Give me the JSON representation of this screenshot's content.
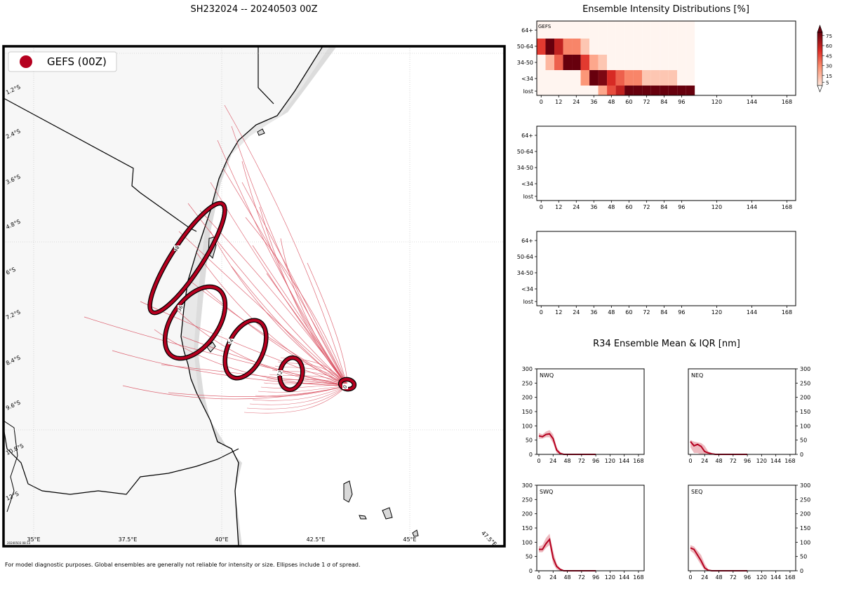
{
  "map": {
    "title": "SH232024 -- 20240503 00Z",
    "legend_label": "GEFS (00Z)",
    "lon_labels": [
      "35°E",
      "37.5°E",
      "40°E",
      "42.5°E",
      "45°E",
      "47.5°E"
    ],
    "lat_labels": [
      "1.2°S",
      "2.4°S",
      "3.6°S",
      "4.8°S",
      "6°S",
      "7.2°S",
      "8.4°S",
      "9.6°S",
      "10.8°S",
      "12°S"
    ],
    "stamp": "20240503 08:13",
    "ellipse_labels": [
      "0",
      "12",
      "24",
      "36",
      "48"
    ],
    "footnote": "For model diagnostic purposes. Global ensembles are generally not reliable for intensity or size. Ellipses include 1 σ of spread."
  },
  "intensity": {
    "title": "Ensemble Intensity Distributions [%]",
    "panel1_label": "GEFS",
    "row_labels": [
      "64+",
      "50-64",
      "34-50",
      "<34",
      "lost"
    ],
    "x_ticks": [
      "0",
      "12",
      "24",
      "36",
      "48",
      "60",
      "72",
      "84",
      "96",
      "120",
      "144",
      "168"
    ],
    "colorbar_ticks": [
      "75",
      "60",
      "45",
      "30",
      "15",
      "5"
    ]
  },
  "r34": {
    "title": "R34 Ensemble Mean & IQR [nm]",
    "quadrants": [
      "NWQ",
      "NEQ",
      "SWQ",
      "SEQ"
    ],
    "y_ticks": [
      "0",
      "50",
      "100",
      "150",
      "200",
      "250",
      "300"
    ],
    "x_ticks": [
      "0",
      "24",
      "48",
      "72",
      "96",
      "120",
      "144",
      "168"
    ]
  },
  "chart_data": [
    {
      "type": "heatmap",
      "title": "Ensemble Intensity Distributions [%]",
      "panel": "GEFS",
      "x_hours": [
        0,
        6,
        12,
        18,
        24,
        30,
        36,
        42,
        48,
        54,
        60,
        66,
        72,
        78,
        84,
        90,
        96,
        102
      ],
      "rows": [
        "64+",
        "50-64",
        "34-50",
        "<34",
        "lost"
      ],
      "values": [
        [
          3,
          3,
          3,
          3,
          3,
          3,
          3,
          3,
          3,
          3,
          3,
          3,
          3,
          3,
          3,
          3,
          3,
          3
        ],
        [
          50,
          90,
          60,
          30,
          30,
          10,
          3,
          3,
          3,
          3,
          3,
          3,
          3,
          3,
          3,
          3,
          3,
          3
        ],
        [
          3,
          15,
          40,
          90,
          90,
          50,
          20,
          10,
          3,
          3,
          3,
          3,
          3,
          3,
          3,
          3,
          3,
          3
        ],
        [
          3,
          3,
          3,
          3,
          3,
          25,
          85,
          75,
          55,
          40,
          30,
          30,
          10,
          10,
          10,
          10,
          3,
          3
        ],
        [
          3,
          3,
          3,
          3,
          3,
          3,
          3,
          20,
          45,
          60,
          80,
          85,
          85,
          85,
          85,
          85,
          85,
          85
        ]
      ],
      "x_range": [
        0,
        174
      ],
      "colorbar_range": [
        0,
        80
      ]
    },
    {
      "type": "heatmap",
      "title": "",
      "panel": "",
      "rows": [
        "64+",
        "50-64",
        "34-50",
        "<34",
        "lost"
      ],
      "values": []
    },
    {
      "type": "heatmap",
      "title": "",
      "panel": "",
      "rows": [
        "64+",
        "50-64",
        "34-50",
        "<34",
        "lost"
      ],
      "values": []
    },
    {
      "type": "line",
      "title": "NWQ",
      "x": [
        0,
        6,
        12,
        18,
        24,
        30,
        36,
        42,
        48,
        60,
        72,
        84,
        96
      ],
      "mean": [
        65,
        62,
        70,
        72,
        55,
        15,
        3,
        0,
        0,
        0,
        0,
        0,
        0
      ],
      "iqr_low": [
        55,
        55,
        60,
        60,
        40,
        5,
        0,
        0,
        0,
        0,
        0,
        0,
        0
      ],
      "iqr_high": [
        75,
        70,
        80,
        85,
        70,
        25,
        8,
        2,
        0,
        0,
        0,
        0,
        0
      ],
      "ylim": [
        0,
        300
      ],
      "xlim": [
        0,
        174
      ]
    },
    {
      "type": "line",
      "title": "NEQ",
      "x": [
        0,
        6,
        12,
        18,
        24,
        30,
        36,
        42,
        48,
        60,
        72,
        84,
        96
      ],
      "mean": [
        45,
        30,
        35,
        28,
        10,
        5,
        2,
        0,
        0,
        0,
        0,
        0,
        0
      ],
      "iqr_low": [
        25,
        5,
        5,
        0,
        0,
        0,
        0,
        0,
        0,
        0,
        0,
        0,
        0
      ],
      "iqr_high": [
        50,
        45,
        42,
        40,
        30,
        10,
        5,
        2,
        0,
        0,
        0,
        0,
        0
      ],
      "ylim": [
        0,
        300
      ],
      "xlim": [
        0,
        174
      ]
    },
    {
      "type": "line",
      "title": "SWQ",
      "x": [
        0,
        6,
        12,
        18,
        24,
        30,
        36,
        42,
        48,
        60,
        72,
        84,
        96
      ],
      "mean": [
        75,
        75,
        95,
        110,
        45,
        15,
        5,
        0,
        0,
        0,
        0,
        0,
        0
      ],
      "iqr_low": [
        65,
        65,
        80,
        90,
        25,
        5,
        0,
        0,
        0,
        0,
        0,
        0,
        0
      ],
      "iqr_high": [
        85,
        90,
        115,
        130,
        70,
        25,
        8,
        2,
        0,
        0,
        0,
        0,
        0
      ],
      "ylim": [
        0,
        300
      ],
      "xlim": [
        0,
        174
      ]
    },
    {
      "type": "line",
      "title": "SEQ",
      "x": [
        0,
        6,
        12,
        18,
        24,
        30,
        36,
        42,
        48,
        60,
        72,
        84,
        96
      ],
      "mean": [
        80,
        75,
        55,
        35,
        10,
        2,
        0,
        0,
        0,
        0,
        0,
        0,
        0
      ],
      "iqr_low": [
        70,
        60,
        40,
        20,
        2,
        0,
        0,
        0,
        0,
        0,
        0,
        0,
        0
      ],
      "iqr_high": [
        90,
        85,
        70,
        55,
        25,
        5,
        2,
        0,
        0,
        0,
        0,
        0,
        0
      ],
      "ylim": [
        0,
        300
      ],
      "xlim": [
        0,
        174
      ]
    }
  ],
  "colors": {
    "ellipse": "#b5001f",
    "track": "#d84a5a",
    "land": "#f7f7f7",
    "r34_mean": "#b5001f",
    "r34_iqr": "#e7a1aa"
  }
}
